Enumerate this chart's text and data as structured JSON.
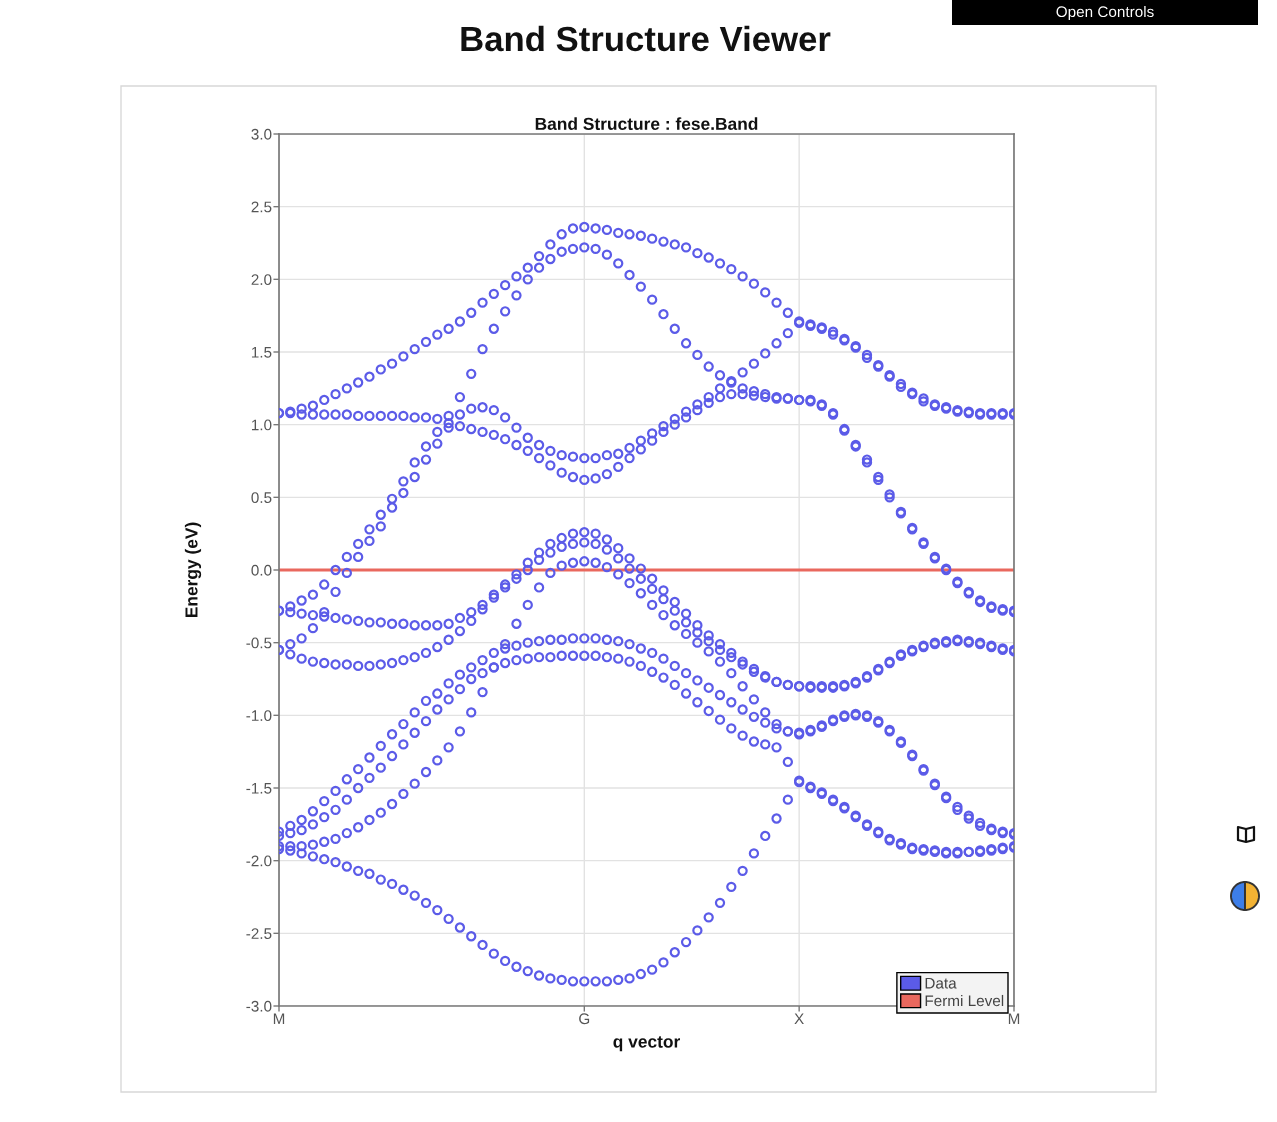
{
  "chart_data": {
    "type": "scatter",
    "title": "Band Structure Viewer",
    "subtitle": "Band Structure : fese.Band",
    "xlabel": "q vector",
    "ylabel": "Energy (eV)",
    "annotations": [
      "Open Controls"
    ],
    "categories": [
      "M",
      null,
      null,
      null,
      null,
      null,
      null,
      null,
      null,
      null,
      null,
      null,
      null,
      null,
      null,
      null,
      null,
      null,
      null,
      null,
      null,
      null,
      null,
      null,
      null,
      null,
      null,
      "G",
      null,
      null,
      null,
      null,
      null,
      null,
      null,
      null,
      null,
      null,
      null,
      null,
      null,
      null,
      null,
      null,
      null,
      null,
      "X",
      null,
      null,
      null,
      null,
      null,
      null,
      null,
      null,
      null,
      null,
      null,
      null,
      null,
      null,
      null,
      null,
      null,
      null,
      "M"
    ],
    "ylim": [
      -3,
      3
    ],
    "yticks": [
      {
        "value": -3,
        "label": "-3.0"
      },
      -2.5,
      {
        "value": -2,
        "label": "-2.0"
      },
      -1.5,
      {
        "value": -1,
        "label": "-1.0"
      },
      -0.5,
      {
        "value": 0,
        "label": "0.0"
      },
      0.5,
      {
        "value": 1,
        "label": "1.0"
      },
      1.5,
      {
        "value": 2,
        "label": "2.0"
      },
      2.5,
      {
        "value": 3,
        "label": "3.0"
      }
    ],
    "grid": true,
    "legend": "bottom right",
    "marker": "circle",
    "series": [
      {
        "name": "Data",
        "color": "#5b5be8",
        "values": [
          1.08,
          1.09,
          1.11,
          1.13,
          1.17,
          1.21,
          1.25,
          1.29,
          1.33,
          1.38,
          1.42,
          1.47,
          1.52,
          1.57,
          1.62,
          1.66,
          1.71,
          1.77,
          1.84,
          1.9,
          1.96,
          2.02,
          2.08,
          2.16,
          2.24,
          2.31,
          2.35,
          2.36,
          2.35,
          2.34,
          2.32,
          2.31,
          2.3,
          2.28,
          2.26,
          2.24,
          2.22,
          2.18,
          2.15,
          2.11,
          2.07,
          2.02,
          1.97,
          1.91,
          1.84,
          1.77,
          1.71,
          1.69,
          1.67,
          1.64,
          1.59,
          1.54,
          1.48,
          1.41,
          1.34,
          1.28,
          1.22,
          1.18,
          1.14,
          1.12,
          1.1,
          1.09,
          1.08,
          1.08,
          1.08,
          1.08
        ]
      },
      {
        "color": "#5b5be8",
        "values": [
          -0.28,
          -0.25,
          -0.21,
          -0.17,
          -0.1,
          0.0,
          0.09,
          0.18,
          0.28,
          0.38,
          0.49,
          0.61,
          0.74,
          0.85,
          0.95,
          1.06,
          1.19,
          1.35,
          1.52,
          1.66,
          1.78,
          1.89,
          2.0,
          2.08,
          2.14,
          2.19,
          2.21,
          2.22,
          2.21,
          2.17,
          2.11,
          2.03,
          1.95,
          1.86,
          1.76,
          1.66,
          1.56,
          1.48,
          1.4,
          1.34,
          1.29,
          1.25,
          1.23,
          1.21,
          1.19,
          1.18,
          1.17,
          1.17,
          1.14,
          1.08,
          0.97,
          0.86,
          0.76,
          0.64,
          0.52,
          0.4,
          0.29,
          0.19,
          0.09,
          0.01,
          -0.08,
          -0.15,
          -0.21,
          -0.25,
          -0.27,
          -0.28
        ]
      },
      {
        "color": "#5b5be8",
        "values": [
          -0.55,
          -0.51,
          -0.47,
          -0.4,
          -0.29,
          -0.15,
          -0.02,
          0.09,
          0.2,
          0.3,
          0.43,
          0.53,
          0.64,
          0.76,
          0.87,
          0.98,
          1.07,
          1.11,
          1.12,
          1.1,
          1.05,
          0.98,
          0.91,
          0.86,
          0.82,
          0.79,
          0.78,
          0.77,
          0.77,
          0.79,
          0.8,
          0.84,
          0.89,
          0.94,
          0.99,
          1.04,
          1.09,
          1.14,
          1.19,
          1.25,
          1.3,
          1.36,
          1.42,
          1.49,
          1.56,
          1.63,
          1.7,
          1.68,
          1.66,
          1.62,
          1.58,
          1.53,
          1.46,
          1.4,
          1.33,
          1.26,
          1.21,
          1.16,
          1.13,
          1.11,
          1.09,
          1.08,
          1.07,
          1.07,
          1.07,
          1.07
        ]
      },
      {
        "color": "#5b5be8",
        "values": [
          1.08,
          1.08,
          1.07,
          1.07,
          1.07,
          1.07,
          1.07,
          1.06,
          1.06,
          1.06,
          1.06,
          1.06,
          1.05,
          1.05,
          1.04,
          1.01,
          0.99,
          0.97,
          0.95,
          0.93,
          0.9,
          0.86,
          0.82,
          0.77,
          0.72,
          0.67,
          0.64,
          0.62,
          0.63,
          0.66,
          0.71,
          0.77,
          0.83,
          0.89,
          0.95,
          1.0,
          1.05,
          1.1,
          1.15,
          1.19,
          1.21,
          1.21,
          1.2,
          1.19,
          1.18,
          1.18,
          1.17,
          1.16,
          1.13,
          1.07,
          0.96,
          0.85,
          0.74,
          0.62,
          0.5,
          0.39,
          0.28,
          0.18,
          0.08,
          0.0,
          -0.09,
          -0.16,
          -0.22,
          -0.26,
          -0.28,
          -0.29
        ]
      },
      {
        "color": "#5b5be8",
        "values": [
          -0.28,
          -0.29,
          -0.3,
          -0.31,
          -0.32,
          -0.33,
          -0.34,
          -0.35,
          -0.36,
          -0.36,
          -0.37,
          -0.37,
          -0.38,
          -0.38,
          -0.38,
          -0.37,
          -0.33,
          -0.29,
          -0.24,
          -0.17,
          -0.1,
          -0.03,
          0.05,
          0.12,
          0.18,
          0.22,
          0.25,
          0.26,
          0.25,
          0.21,
          0.15,
          0.08,
          0.01,
          -0.06,
          -0.14,
          -0.22,
          -0.3,
          -0.38,
          -0.45,
          -0.51,
          -0.57,
          -0.63,
          -0.68,
          -0.73,
          -0.77,
          -0.79,
          -0.8,
          -0.8,
          -0.8,
          -0.8,
          -0.79,
          -0.77,
          -0.73,
          -0.68,
          -0.63,
          -0.58,
          -0.55,
          -0.52,
          -0.5,
          -0.49,
          -0.48,
          -0.49,
          -0.5,
          -0.52,
          -0.54,
          -0.55
        ]
      },
      {
        "color": "#5b5be8",
        "values": [
          -0.55,
          -0.58,
          -0.61,
          -0.63,
          -0.64,
          -0.65,
          -0.65,
          -0.66,
          -0.66,
          -0.65,
          -0.64,
          -0.62,
          -0.6,
          -0.57,
          -0.53,
          -0.48,
          -0.42,
          -0.35,
          -0.27,
          -0.19,
          -0.12,
          -0.06,
          0.0,
          0.07,
          0.12,
          0.16,
          0.18,
          0.19,
          0.18,
          0.14,
          0.08,
          0.01,
          -0.06,
          -0.13,
          -0.2,
          -0.28,
          -0.36,
          -0.43,
          -0.49,
          -0.55,
          -0.6,
          -0.65,
          -0.7,
          -0.74,
          -0.77,
          -0.79,
          -0.8,
          -0.81,
          -0.81,
          -0.81,
          -0.8,
          -0.78,
          -0.74,
          -0.69,
          -0.64,
          -0.59,
          -0.56,
          -0.53,
          -0.51,
          -0.5,
          -0.49,
          -0.5,
          -0.51,
          -0.53,
          -0.55,
          -0.56
        ]
      },
      {
        "color": "#5b5be8",
        "values": [
          -1.9,
          -1.9,
          -1.9,
          -1.89,
          -1.87,
          -1.85,
          -1.81,
          -1.77,
          -1.72,
          -1.67,
          -1.61,
          -1.54,
          -1.47,
          -1.39,
          -1.31,
          -1.22,
          -1.11,
          -0.98,
          -0.84,
          -0.67,
          -0.51,
          -0.37,
          -0.24,
          -0.12,
          -0.02,
          0.03,
          0.05,
          0.06,
          0.05,
          0.02,
          -0.03,
          -0.09,
          -0.16,
          -0.24,
          -0.31,
          -0.38,
          -0.44,
          -0.5,
          -0.56,
          -0.63,
          -0.71,
          -0.8,
          -0.89,
          -0.98,
          -1.06,
          -1.11,
          -1.13,
          -1.1,
          -1.07,
          -1.03,
          -1.0,
          -0.99,
          -1.0,
          -1.04,
          -1.1,
          -1.18,
          -1.27,
          -1.37,
          -1.47,
          -1.56,
          -1.63,
          -1.69,
          -1.74,
          -1.78,
          -1.8,
          -1.81
        ]
      },
      {
        "color": "#5b5be8",
        "values": [
          -1.8,
          -1.76,
          -1.72,
          -1.66,
          -1.59,
          -1.52,
          -1.44,
          -1.37,
          -1.29,
          -1.21,
          -1.13,
          -1.06,
          -0.98,
          -0.9,
          -0.85,
          -0.78,
          -0.72,
          -0.67,
          -0.62,
          -0.57,
          -0.54,
          -0.52,
          -0.5,
          -0.49,
          -0.48,
          -0.48,
          -0.47,
          -0.47,
          -0.47,
          -0.48,
          -0.49,
          -0.51,
          -0.54,
          -0.57,
          -0.61,
          -0.66,
          -0.71,
          -0.76,
          -0.81,
          -0.86,
          -0.91,
          -0.96,
          -1.01,
          -1.05,
          -1.09,
          -1.11,
          -1.12,
          -1.11,
          -1.08,
          -1.04,
          -1.01,
          -1.0,
          -1.01,
          -1.05,
          -1.11,
          -1.19,
          -1.28,
          -1.38,
          -1.48,
          -1.57,
          -1.65,
          -1.71,
          -1.76,
          -1.79,
          -1.81,
          -1.82
        ]
      },
      {
        "color": "#5b5be8",
        "values": [
          -1.83,
          -1.81,
          -1.79,
          -1.75,
          -1.7,
          -1.65,
          -1.58,
          -1.5,
          -1.43,
          -1.36,
          -1.28,
          -1.2,
          -1.12,
          -1.04,
          -0.96,
          -0.89,
          -0.82,
          -0.75,
          -0.71,
          -0.67,
          -0.64,
          -0.62,
          -0.61,
          -0.6,
          -0.6,
          -0.59,
          -0.59,
          -0.59,
          -0.59,
          -0.6,
          -0.61,
          -0.63,
          -0.66,
          -0.7,
          -0.74,
          -0.79,
          -0.85,
          -0.91,
          -0.97,
          -1.03,
          -1.09,
          -1.14,
          -1.18,
          -1.2,
          -1.22,
          -1.32,
          -1.45,
          -1.49,
          -1.53,
          -1.58,
          -1.63,
          -1.69,
          -1.75,
          -1.8,
          -1.85,
          -1.88,
          -1.91,
          -1.92,
          -1.93,
          -1.94,
          -1.94,
          -1.94,
          -1.93,
          -1.92,
          -1.91,
          -1.9
        ]
      },
      {
        "color": "#5b5be8",
        "values": [
          -1.92,
          -1.93,
          -1.95,
          -1.97,
          -1.99,
          -2.01,
          -2.04,
          -2.07,
          -2.09,
          -2.13,
          -2.16,
          -2.2,
          -2.24,
          -2.29,
          -2.34,
          -2.4,
          -2.46,
          -2.52,
          -2.58,
          -2.64,
          -2.69,
          -2.73,
          -2.76,
          -2.79,
          -2.81,
          -2.82,
          -2.83,
          -2.83,
          -2.83,
          -2.83,
          -2.82,
          -2.81,
          -2.78,
          -2.75,
          -2.7,
          -2.63,
          -2.56,
          -2.48,
          -2.39,
          -2.29,
          -2.18,
          -2.07,
          -1.95,
          -1.83,
          -1.71,
          -1.58,
          -1.46,
          -1.5,
          -1.54,
          -1.59,
          -1.64,
          -1.7,
          -1.76,
          -1.81,
          -1.86,
          -1.89,
          -1.92,
          -1.93,
          -1.94,
          -1.95,
          -1.95,
          -1.94,
          -1.94,
          -1.93,
          -1.92,
          -1.91
        ]
      },
      {
        "name": "Fermi Level",
        "type": "line",
        "marker": "none",
        "color": "#e9685e",
        "values": [
          0,
          0,
          0,
          0,
          0,
          0,
          0,
          0,
          0,
          0,
          0,
          0,
          0,
          0,
          0,
          0,
          0,
          0,
          0,
          0,
          0,
          0,
          0,
          0,
          0,
          0,
          0,
          0,
          0,
          0,
          0,
          0,
          0,
          0,
          0,
          0,
          0,
          0,
          0,
          0,
          0,
          0,
          0,
          0,
          0,
          0,
          0,
          0,
          0,
          0,
          0,
          0,
          0,
          0,
          0,
          0,
          0,
          0,
          0,
          0,
          0,
          0,
          0,
          0,
          0,
          0
        ]
      }
    ]
  }
}
